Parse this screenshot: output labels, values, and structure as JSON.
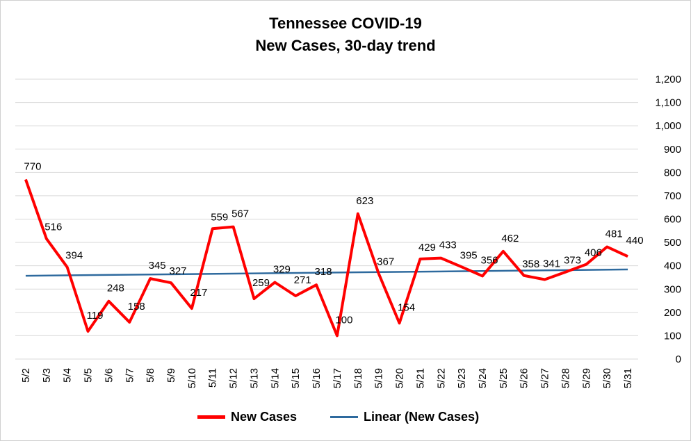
{
  "chart_data": {
    "type": "line",
    "title": "Tennessee COVID-19",
    "subtitle": "New Cases, 30-day trend",
    "categories": [
      "5/2",
      "5/3",
      "5/4",
      "5/5",
      "5/6",
      "5/7",
      "5/8",
      "5/9",
      "5/10",
      "5/11",
      "5/12",
      "5/13",
      "5/14",
      "5/15",
      "5/16",
      "5/17",
      "5/18",
      "5/19",
      "5/20",
      "5/21",
      "5/22",
      "5/23",
      "5/24",
      "5/25",
      "5/26",
      "5/27",
      "5/28",
      "5/29",
      "5/30",
      "5/31"
    ],
    "series": [
      {
        "name": "New Cases",
        "color": "#ff0000",
        "values": [
          770,
          516,
          394,
          119,
          248,
          158,
          345,
          327,
          217,
          559,
          567,
          259,
          329,
          271,
          318,
          100,
          623,
          367,
          154,
          429,
          433,
          395,
          356,
          462,
          358,
          341,
          373,
          406,
          481,
          440
        ],
        "data_labels": true
      },
      {
        "name": "Linear (New Cases)",
        "color": "#2e6a9e",
        "trendline": true,
        "values_start_end": [
          357,
          384
        ]
      }
    ],
    "ylim": [
      0,
      1200
    ],
    "yticks": [
      "0",
      "100",
      "200",
      "300",
      "400",
      "500",
      "600",
      "700",
      "800",
      "900",
      "1,000",
      "1,100",
      "1,200"
    ],
    "y_axis_position": "right",
    "grid": true,
    "legend_position": "bottom"
  }
}
